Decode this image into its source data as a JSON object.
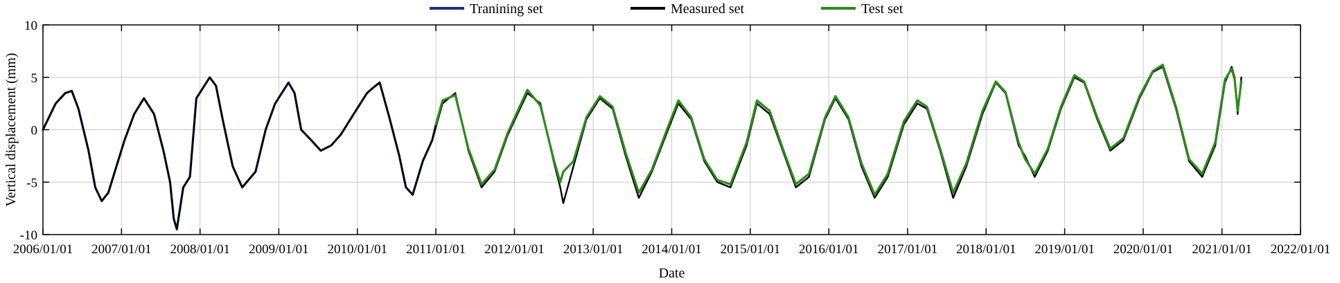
{
  "chart_data": {
    "type": "line",
    "title": "",
    "xlabel": "Date",
    "ylabel": "Vertical displacement (mm)",
    "xlim": [
      "2006/01/01",
      "2022/01/01"
    ],
    "ylim": [
      -10,
      10
    ],
    "x_ticks": [
      "2006/01/01",
      "2007/01/01",
      "2008/01/01",
      "2009/01/01",
      "2010/01/01",
      "2011/01/01",
      "2012/01/01",
      "2013/01/01",
      "2014/01/01",
      "2015/01/01",
      "2016/01/01",
      "2017/01/01",
      "2018/01/01",
      "2019/01/01",
      "2020/01/01",
      "2021/01/01",
      "2022/01/01"
    ],
    "y_ticks": [
      10,
      5,
      0,
      -5,
      -10
    ],
    "grid": true,
    "legend_position": "top-center",
    "series": [
      {
        "name": "Tranining set",
        "color": "#1f2f7a",
        "x": [
          "2006/01/01",
          "2006/03/01",
          "2006/04/15",
          "2006/05/15",
          "2006/06/15",
          "2006/08/01",
          "2006/09/01",
          "2006/10/01",
          "2006/11/01",
          "2006/12/01",
          "2007/01/15",
          "2007/03/01",
          "2007/04/15",
          "2007/06/01",
          "2007/07/15",
          "2007/08/15",
          "2007/09/01",
          "2007/09/15",
          "2007/10/15",
          "2007/11/15",
          "2007/12/15",
          "2008/01/15",
          "2008/02/15",
          "2008/03/15",
          "2008/04/15",
          "2008/06/01",
          "2008/07/15",
          "2008/09/15",
          "2008/11/01",
          "2008/12/15",
          "2009/02/15",
          "2009/03/15",
          "2009/04/15",
          "2009/06/01",
          "2009/07/15",
          "2009/09/01",
          "2009/10/15",
          "2009/12/15",
          "2010/02/15",
          "2010/03/15",
          "2010/04/15",
          "2010/06/01",
          "2010/07/15",
          "2010/08/15",
          "2010/09/15",
          "2010/11/01",
          "2010/12/15",
          "2011/01/01"
        ],
        "y": [
          0.0,
          2.5,
          3.5,
          3.7,
          2.0,
          -2.0,
          -5.5,
          -6.8,
          -6.0,
          -4.0,
          -1.0,
          1.5,
          3.0,
          1.5,
          -2.0,
          -5.0,
          -8.5,
          -9.5,
          -5.5,
          -4.5,
          3.0,
          4.0,
          5.0,
          4.2,
          1.0,
          -3.5,
          -5.5,
          -4.0,
          0.0,
          2.5,
          4.5,
          3.5,
          0.0,
          -1.0,
          -2.0,
          -1.5,
          -0.5,
          1.5,
          3.5,
          4.0,
          4.5,
          1.0,
          -2.5,
          -5.5,
          -6.2,
          -3.0,
          -1.0,
          0.5
        ]
      },
      {
        "name": "Measured set",
        "color": "#000000",
        "x": [
          "2006/01/01",
          "2006/03/01",
          "2006/04/15",
          "2006/05/15",
          "2006/06/15",
          "2006/08/01",
          "2006/09/01",
          "2006/10/01",
          "2006/11/01",
          "2006/12/01",
          "2007/01/15",
          "2007/03/01",
          "2007/04/15",
          "2007/06/01",
          "2007/07/15",
          "2007/08/15",
          "2007/09/01",
          "2007/09/15",
          "2007/10/15",
          "2007/11/15",
          "2007/12/15",
          "2008/01/15",
          "2008/02/15",
          "2008/03/15",
          "2008/04/15",
          "2008/06/01",
          "2008/07/15",
          "2008/09/15",
          "2008/11/01",
          "2008/12/15",
          "2009/02/15",
          "2009/03/15",
          "2009/04/15",
          "2009/06/01",
          "2009/07/15",
          "2009/09/01",
          "2009/10/15",
          "2009/12/15",
          "2010/02/15",
          "2010/03/15",
          "2010/04/15",
          "2010/06/01",
          "2010/07/15",
          "2010/08/15",
          "2010/09/15",
          "2010/11/01",
          "2010/12/15",
          "2011/02/01",
          "2011/04/01",
          "2011/06/01",
          "2011/08/01",
          "2011/10/01",
          "2011/12/01",
          "2012/03/01",
          "2012/05/01",
          "2012/07/01",
          "2012/08/01",
          "2012/08/15",
          "2012/10/01",
          "2012/12/01",
          "2013/02/01",
          "2013/04/01",
          "2013/06/01",
          "2013/08/01",
          "2013/10/01",
          "2013/12/15",
          "2014/02/01",
          "2014/04/01",
          "2014/06/01",
          "2014/08/01",
          "2014/10/01",
          "2014/12/15",
          "2015/02/01",
          "2015/04/01",
          "2015/06/01",
          "2015/08/01",
          "2015/10/01",
          "2015/12/15",
          "2016/02/01",
          "2016/04/01",
          "2016/06/01",
          "2016/08/01",
          "2016/10/01",
          "2016/12/15",
          "2017/02/15",
          "2017/04/01",
          "2017/06/01",
          "2017/08/01",
          "2017/10/01",
          "2017/12/15",
          "2018/02/15",
          "2018/04/01",
          "2018/06/01",
          "2018/07/01",
          "2018/08/15",
          "2018/10/15",
          "2018/12/15",
          "2019/02/15",
          "2019/04/01",
          "2019/06/01",
          "2019/08/01",
          "2019/10/01",
          "2019/12/15",
          "2020/02/15",
          "2020/04/01",
          "2020/06/01",
          "2020/08/01",
          "2020/10/01",
          "2020/12/01",
          "2021/01/15",
          "2021/02/15",
          "2021/03/01",
          "2021/03/15",
          "2021/04/01"
        ],
        "y": [
          0.0,
          2.5,
          3.5,
          3.7,
          2.0,
          -2.0,
          -5.5,
          -6.8,
          -6.0,
          -4.0,
          -1.0,
          1.5,
          3.0,
          1.5,
          -2.0,
          -5.0,
          -8.5,
          -9.5,
          -5.5,
          -4.5,
          3.0,
          4.0,
          5.0,
          4.2,
          1.0,
          -3.5,
          -5.5,
          -4.0,
          0.0,
          2.5,
          4.5,
          3.5,
          0.0,
          -1.0,
          -2.0,
          -1.5,
          -0.5,
          1.5,
          3.5,
          4.0,
          4.5,
          1.0,
          -2.5,
          -5.5,
          -6.2,
          -3.0,
          -1.0,
          2.5,
          3.5,
          -2.0,
          -5.5,
          -4.0,
          -0.5,
          3.5,
          2.5,
          -3.0,
          -5.5,
          -7.0,
          -3.5,
          1.0,
          3.0,
          2.0,
          -2.5,
          -6.5,
          -4.0,
          0.0,
          2.5,
          1.0,
          -3.0,
          -5.0,
          -5.5,
          -1.5,
          2.5,
          1.5,
          -2.0,
          -5.5,
          -4.5,
          1.0,
          3.0,
          1.0,
          -3.5,
          -6.5,
          -4.5,
          0.5,
          2.5,
          2.0,
          -2.0,
          -6.5,
          -3.5,
          1.5,
          4.5,
          3.5,
          -1.5,
          -2.5,
          -4.5,
          -2.0,
          2.0,
          5.0,
          4.5,
          1.0,
          -2.0,
          -1.0,
          3.0,
          5.5,
          6.0,
          2.0,
          -3.0,
          -4.5,
          -1.5,
          4.5,
          6.0,
          5.0,
          1.5,
          5.0
        ]
      },
      {
        "name": "Test set",
        "color": "#2e8a1e",
        "x": [
          "2011/01/01",
          "2011/02/01",
          "2011/04/01",
          "2011/06/01",
          "2011/08/01",
          "2011/10/01",
          "2011/12/01",
          "2012/03/01",
          "2012/05/01",
          "2012/07/01",
          "2012/08/01",
          "2012/08/15",
          "2012/10/01",
          "2012/12/01",
          "2013/02/01",
          "2013/04/01",
          "2013/06/01",
          "2013/08/01",
          "2013/10/01",
          "2013/12/15",
          "2014/02/01",
          "2014/04/01",
          "2014/06/01",
          "2014/08/01",
          "2014/10/01",
          "2014/12/15",
          "2015/02/01",
          "2015/04/01",
          "2015/06/01",
          "2015/08/01",
          "2015/10/01",
          "2015/12/15",
          "2016/02/01",
          "2016/04/01",
          "2016/06/01",
          "2016/08/01",
          "2016/10/01",
          "2016/12/15",
          "2017/02/15",
          "2017/04/01",
          "2017/06/01",
          "2017/08/01",
          "2017/10/01",
          "2017/12/15",
          "2018/02/15",
          "2018/04/01",
          "2018/06/01",
          "2018/07/01",
          "2018/08/15",
          "2018/10/15",
          "2018/12/15",
          "2019/02/15",
          "2019/04/01",
          "2019/06/01",
          "2019/08/01",
          "2019/10/01",
          "2019/12/15",
          "2020/02/15",
          "2020/04/01",
          "2020/06/01",
          "2020/08/01",
          "2020/10/01",
          "2020/12/01",
          "2021/01/15",
          "2021/02/15",
          "2021/03/01",
          "2021/03/15",
          "2021/04/01"
        ],
        "y": [
          0.5,
          2.8,
          3.3,
          -1.8,
          -5.2,
          -3.8,
          -0.3,
          3.8,
          2.3,
          -2.8,
          -5.0,
          -4.0,
          -3.0,
          1.2,
          3.2,
          2.2,
          -2.2,
          -6.0,
          -3.8,
          0.3,
          2.8,
          1.2,
          -2.8,
          -4.8,
          -5.2,
          -1.2,
          2.8,
          1.8,
          -1.8,
          -5.2,
          -4.2,
          1.2,
          3.2,
          1.2,
          -3.2,
          -6.2,
          -4.2,
          0.8,
          2.8,
          2.2,
          -1.8,
          -6.0,
          -3.2,
          1.8,
          4.6,
          3.6,
          -1.2,
          -2.8,
          -4.2,
          -1.8,
          2.2,
          5.2,
          4.6,
          1.2,
          -1.8,
          -0.8,
          3.2,
          5.6,
          6.2,
          2.2,
          -2.8,
          -4.2,
          -1.2,
          4.8,
          5.8,
          4.8,
          1.8,
          4.6
        ]
      }
    ]
  }
}
